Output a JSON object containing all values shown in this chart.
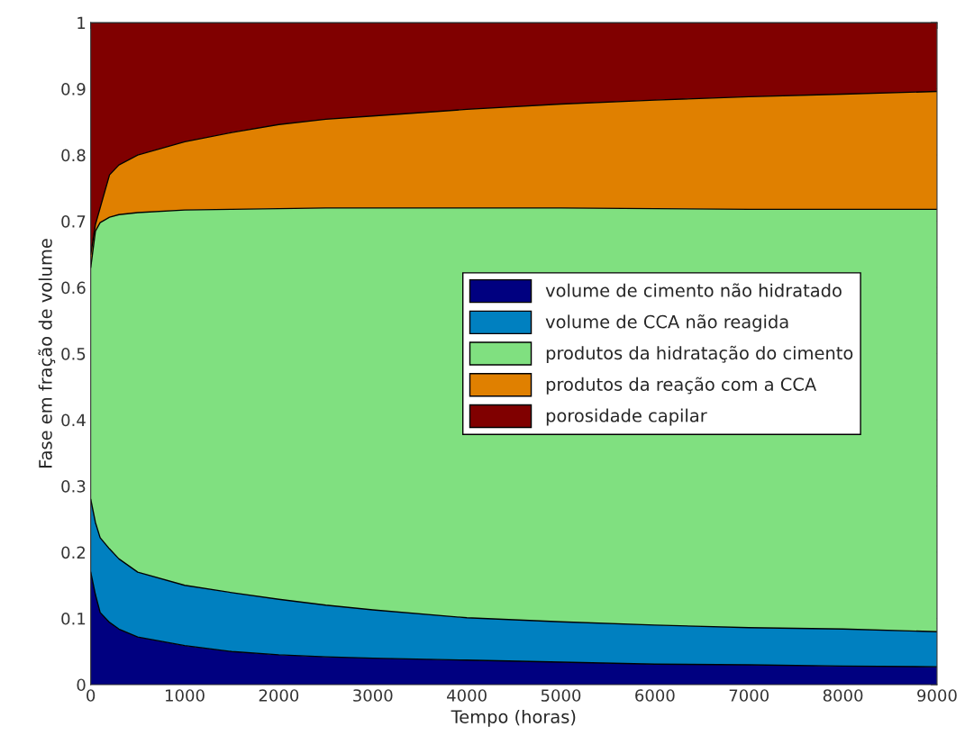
{
  "chart_data": {
    "type": "area",
    "stacked": true,
    "xlabel": "Tempo (horas)",
    "ylabel": "Fase em fração de volume",
    "x": [
      0,
      50,
      100,
      200,
      300,
      500,
      1000,
      1500,
      2000,
      2500,
      3000,
      4000,
      5000,
      6000,
      7000,
      8000,
      9000
    ],
    "series": [
      {
        "name": "volume de cimento não hidratado",
        "color": "#000080",
        "values": [
          0.17,
          0.136,
          0.109,
          0.094,
          0.084,
          0.072,
          0.059,
          0.05,
          0.045,
          0.042,
          0.04,
          0.037,
          0.034,
          0.031,
          0.03,
          0.028,
          0.027
        ]
      },
      {
        "name": "volume de CCA não reagida",
        "color": "#0080c0",
        "values": [
          0.11,
          0.109,
          0.113,
          0.111,
          0.106,
          0.098,
          0.091,
          0.089,
          0.084,
          0.078,
          0.073,
          0.064,
          0.061,
          0.059,
          0.056,
          0.056,
          0.053
        ]
      },
      {
        "name": "produtos da hidratação do cimento",
        "color": "#80e080",
        "values": [
          0.35,
          0.44,
          0.476,
          0.501,
          0.52,
          0.543,
          0.567,
          0.579,
          0.59,
          0.6,
          0.607,
          0.619,
          0.625,
          0.629,
          0.632,
          0.634,
          0.638
        ]
      },
      {
        "name": "produtos da reação com a CCA",
        "color": "#e08000",
        "values": [
          0.02,
          0.01,
          0.022,
          0.064,
          0.075,
          0.087,
          0.103,
          0.116,
          0.127,
          0.134,
          0.139,
          0.149,
          0.157,
          0.164,
          0.17,
          0.174,
          0.178
        ]
      },
      {
        "name": "porosidade capilar",
        "color": "#800000",
        "values": [
          0.35,
          0.305,
          0.28,
          0.23,
          0.215,
          0.2,
          0.18,
          0.166,
          0.154,
          0.146,
          0.141,
          0.131,
          0.123,
          0.117,
          0.112,
          0.108,
          0.104
        ]
      }
    ],
    "xlim": [
      0,
      9000
    ],
    "ylim": [
      0,
      1
    ],
    "xticks": [
      0,
      1000,
      2000,
      3000,
      4000,
      5000,
      6000,
      7000,
      8000,
      9000
    ],
    "yticks": [
      0,
      0.1,
      0.2,
      0.3,
      0.4,
      0.5,
      0.6,
      0.7,
      0.8,
      0.9,
      1
    ],
    "legend": "right"
  }
}
